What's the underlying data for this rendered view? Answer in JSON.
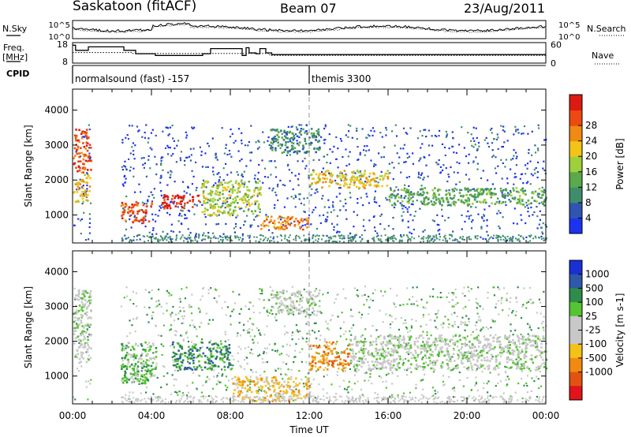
{
  "header": {
    "station": "Saskatoon (fitACF)",
    "beam": "Beam 07",
    "date": "23/Aug/2011"
  },
  "legend_labels": {
    "nsky": "N.Sky",
    "nsearch": "N.Search",
    "freq": "Freq.",
    "freq_unit": "[MHz]",
    "nave": "Nave",
    "cpid": "CPID"
  },
  "cpid_segments": [
    {
      "label": "normalsound (fast) -157",
      "start_hour": 0
    },
    {
      "label": "themis 3300",
      "start_hour": 12
    }
  ],
  "chart_data": [
    {
      "type": "line",
      "name": "noise",
      "ytick_labels": [
        "10^5",
        "10^0"
      ],
      "ytick_labels_right": [
        "10^5",
        "10^0"
      ],
      "xlim": [
        0,
        24
      ],
      "series": [
        {
          "name": "N.Sky",
          "style": "solid"
        },
        {
          "name": "N.Search",
          "style": "dotted"
        }
      ]
    },
    {
      "type": "line",
      "name": "frequency",
      "yticks": [
        8,
        18
      ],
      "yticks_right": [
        0,
        60
      ],
      "xlim": [
        0,
        24
      ],
      "series": [
        {
          "name": "Freq.",
          "style": "solid",
          "x": [
            0,
            0.15,
            0.15,
            0.8,
            0.8,
            2.6,
            2.6,
            3.2,
            3.2,
            4.2,
            4.2,
            6.6,
            6.6,
            7.0,
            7.0,
            8.6,
            8.6,
            8.8,
            8.8,
            8.95,
            8.95,
            9.3,
            9.3,
            9.5,
            9.5,
            9.8,
            9.8,
            10.1,
            10.1,
            24
          ],
          "y": [
            17.5,
            17.5,
            14.5,
            14.5,
            16.5,
            16.5,
            14.5,
            14.5,
            12.5,
            12.5,
            11.5,
            11.5,
            12.5,
            12.5,
            15.5,
            15.5,
            11.5,
            11.5,
            16.0,
            16.0,
            13.0,
            13.0,
            12.5,
            12.5,
            15.5,
            15.5,
            13.0,
            13.0,
            12.0,
            12.0
          ]
        },
        {
          "name": "Nave",
          "style": "dotted",
          "axis": "right",
          "x": [
            0,
            3,
            3,
            10,
            10,
            24
          ],
          "y": [
            34,
            34,
            31,
            31,
            25,
            25
          ]
        }
      ]
    },
    {
      "type": "heatmap",
      "name": "power",
      "ylabel": "Slant Range [km]",
      "yticks": [
        1000,
        2000,
        3000,
        4000
      ],
      "ylim": [
        200,
        4600
      ],
      "xlim": [
        0,
        24
      ],
      "colorbar": {
        "label": "Power [dB]",
        "ticks": [
          4,
          8,
          12,
          16,
          20,
          24,
          28
        ],
        "colors": [
          "#1d32f0",
          "#2f55b0",
          "#3f8d6d",
          "#5aa94a",
          "#9ed03b",
          "#f2c417",
          "#f08a12",
          "#ec4a10",
          "#dd1a12"
        ]
      },
      "regions": [
        {
          "x": [
            0.0,
            0.9
          ],
          "y": [
            2200,
            3500
          ],
          "level": 7
        },
        {
          "x": [
            0.0,
            0.9
          ],
          "y": [
            1400,
            2200
          ],
          "level": 5
        },
        {
          "x": [
            2.4,
            4.0
          ],
          "y": [
            800,
            1400
          ],
          "level": 7
        },
        {
          "x": [
            4.5,
            6.5
          ],
          "y": [
            1200,
            1600
          ],
          "level": 8
        },
        {
          "x": [
            6.5,
            9.5
          ],
          "y": [
            1000,
            2000
          ],
          "level": 4
        },
        {
          "x": [
            9.5,
            12.0
          ],
          "y": [
            600,
            1000
          ],
          "level": 6
        },
        {
          "x": [
            12.0,
            16.0
          ],
          "y": [
            1800,
            2300
          ],
          "level": 5
        },
        {
          "x": [
            16.0,
            24.0
          ],
          "y": [
            1300,
            1800
          ],
          "level": 3
        },
        {
          "x": [
            10.0,
            12.5
          ],
          "y": [
            2800,
            3500
          ],
          "level": 2
        }
      ]
    },
    {
      "type": "heatmap",
      "name": "velocity",
      "ylabel": "Slant Range [km]",
      "yticks": [
        1000,
        2000,
        3000,
        4000
      ],
      "ylim": [
        200,
        4600
      ],
      "xlim": [
        0,
        24
      ],
      "xticks": [
        "00:00",
        "04:00",
        "08:00",
        "12:00",
        "16:00",
        "20:00",
        "00:00"
      ],
      "xlabel": "Time UT",
      "colorbar": {
        "label": "Velocity [m s-1]",
        "ticks": [
          1000,
          500,
          100,
          25,
          -25,
          -100,
          -500,
          -1000
        ],
        "colors": [
          "#1a2fd4",
          "#2f58a8",
          "#2e8c4c",
          "#56c330",
          "#c8c8c8",
          "#c8c8c8",
          "#f4c118",
          "#f28a12",
          "#e25312",
          "#e0141a"
        ]
      },
      "regions": [
        {
          "x": [
            0.0,
            0.9
          ],
          "y": [
            1400,
            3500
          ],
          "level": 4
        },
        {
          "x": [
            2.4,
            4.2
          ],
          "y": [
            800,
            2000
          ],
          "level": 3
        },
        {
          "x": [
            5.0,
            8.0
          ],
          "y": [
            1200,
            2000
          ],
          "level": 2
        },
        {
          "x": [
            8.0,
            12.0
          ],
          "y": [
            300,
            1000
          ],
          "level": 6
        },
        {
          "x": [
            12.0,
            14.0
          ],
          "y": [
            1200,
            2000
          ],
          "level": 7
        },
        {
          "x": [
            14.0,
            24.0
          ],
          "y": [
            1200,
            2200
          ],
          "level": 4
        },
        {
          "x": [
            10.0,
            12.5
          ],
          "y": [
            2800,
            3500
          ],
          "level": 4
        }
      ]
    }
  ]
}
